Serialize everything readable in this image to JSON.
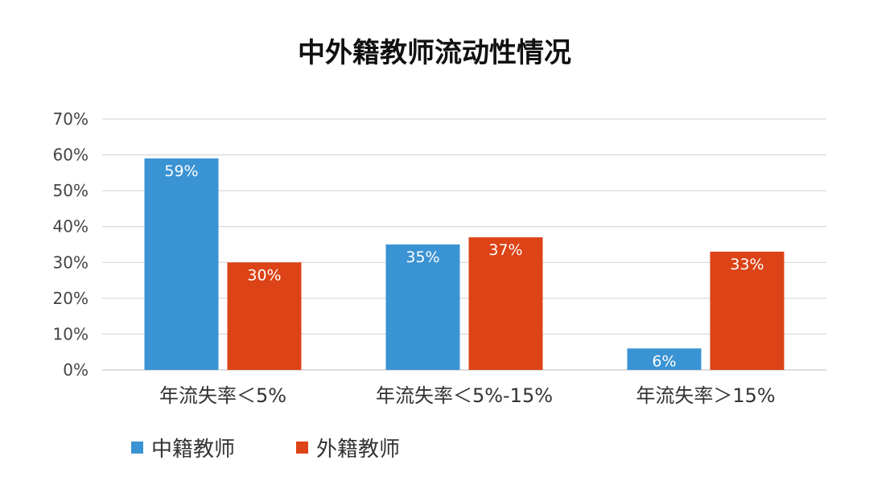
{
  "chart_data": {
    "type": "bar",
    "title": "中外籍教师流动性情况",
    "categories": [
      "年流失率＜5%",
      "年流失率＜5%-15%",
      "年流失率＞15%"
    ],
    "series": [
      {
        "name": "中籍教师",
        "color": "#3A93D3",
        "values": [
          59,
          35,
          6
        ],
        "labels": [
          "59%",
          "35%",
          "6%"
        ]
      },
      {
        "name": "外籍教师",
        "color": "#DC4317",
        "values": [
          30,
          37,
          33
        ],
        "labels": [
          "30%",
          "37%",
          "33%"
        ]
      }
    ],
    "y_ticks": [
      "0%",
      "10%",
      "20%",
      "30%",
      "40%",
      "50%",
      "60%",
      "70%"
    ],
    "ylim": [
      0,
      70
    ],
    "grid": true,
    "legend_position": "bottom-left"
  }
}
